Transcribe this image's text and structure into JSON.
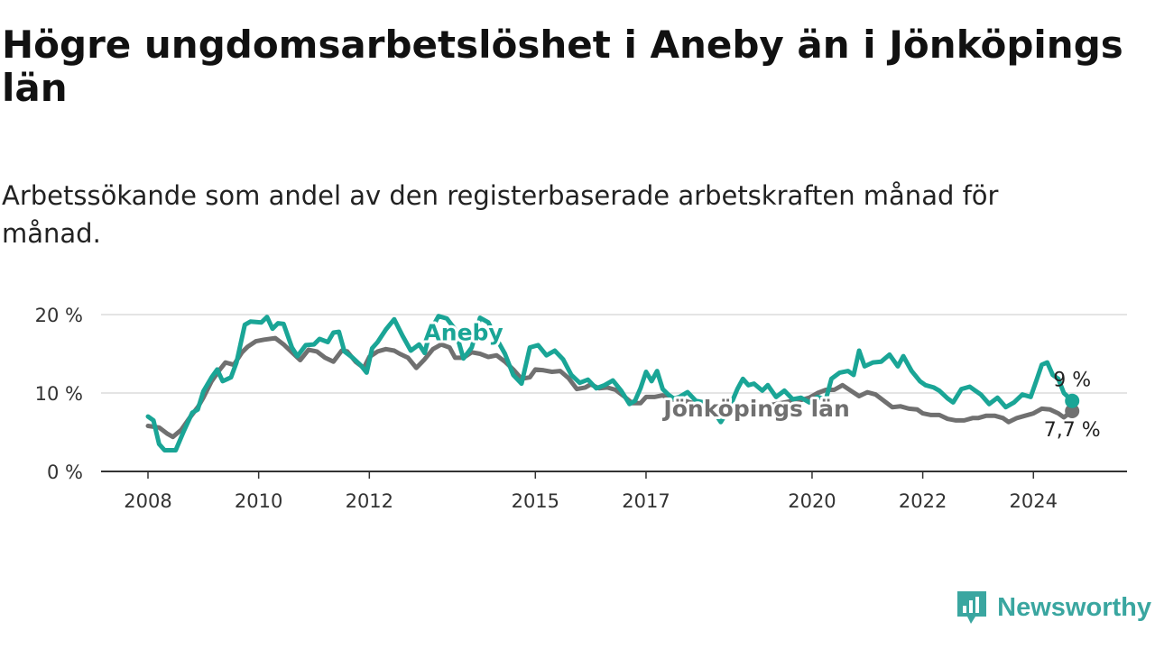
{
  "header": {
    "title": "Högre ungdomsarbetslöshet i Aneby än i Jönköpings län",
    "subtitle": "Arbetssökande som andel av den registerbaserade arbetskraften månad för månad."
  },
  "brand": {
    "name": "Newsworthy",
    "icon": "chart-bubble-icon",
    "color": "#3aa6a0"
  },
  "chart_data": {
    "type": "line",
    "title": "Högre ungdomsarbetslöshet i Aneby än i Jönköpings län",
    "xlabel": "",
    "ylabel": "",
    "xlim": [
      2008.0,
      2025.3
    ],
    "ylim": [
      0,
      20
    ],
    "grid": true,
    "x_ticks": [
      {
        "value": 2008,
        "label": "2008"
      },
      {
        "value": 2010,
        "label": "2010"
      },
      {
        "value": 2012,
        "label": "2012"
      },
      {
        "value": 2015,
        "label": "2015"
      },
      {
        "value": 2017,
        "label": "2017"
      },
      {
        "value": 2020,
        "label": "2020"
      },
      {
        "value": 2022,
        "label": "2022"
      },
      {
        "value": 2024,
        "label": "2024"
      }
    ],
    "y_ticks": [
      {
        "value": 0,
        "label": "0 %"
      },
      {
        "value": 10,
        "label": "10 %"
      },
      {
        "value": 20,
        "label": "20 %"
      }
    ],
    "series": [
      {
        "name": "Jönköpings län",
        "color": "#707070",
        "end_label": "7,7 %",
        "points": [
          [
            2008.0,
            5.8
          ],
          [
            2008.2,
            5.6
          ],
          [
            2008.35,
            4.8
          ],
          [
            2008.45,
            4.4
          ],
          [
            2008.6,
            5.3
          ],
          [
            2008.75,
            6.8
          ],
          [
            2008.9,
            8.2
          ],
          [
            2009.0,
            9.4
          ],
          [
            2009.15,
            11.5
          ],
          [
            2009.3,
            13.0
          ],
          [
            2009.4,
            13.9
          ],
          [
            2009.55,
            13.6
          ],
          [
            2009.7,
            15.2
          ],
          [
            2009.8,
            15.9
          ],
          [
            2009.95,
            16.6
          ],
          [
            2010.1,
            16.8
          ],
          [
            2010.3,
            17.0
          ],
          [
            2010.45,
            16.2
          ],
          [
            2010.6,
            15.2
          ],
          [
            2010.75,
            14.2
          ],
          [
            2010.9,
            15.5
          ],
          [
            2011.05,
            15.3
          ],
          [
            2011.2,
            14.5
          ],
          [
            2011.35,
            14.0
          ],
          [
            2011.5,
            15.4
          ],
          [
            2011.6,
            15.3
          ],
          [
            2011.75,
            14.0
          ],
          [
            2011.9,
            13.2
          ],
          [
            2012.0,
            14.6
          ],
          [
            2012.15,
            15.3
          ],
          [
            2012.3,
            15.6
          ],
          [
            2012.45,
            15.4
          ],
          [
            2012.55,
            15.0
          ],
          [
            2012.7,
            14.5
          ],
          [
            2012.85,
            13.2
          ],
          [
            2013.0,
            14.3
          ],
          [
            2013.15,
            15.6
          ],
          [
            2013.3,
            16.2
          ],
          [
            2013.45,
            15.8
          ],
          [
            2013.55,
            14.5
          ],
          [
            2013.7,
            14.5
          ],
          [
            2013.85,
            15.2
          ],
          [
            2014.0,
            15.0
          ],
          [
            2014.15,
            14.6
          ],
          [
            2014.3,
            14.8
          ],
          [
            2014.45,
            14.0
          ],
          [
            2014.6,
            13.0
          ],
          [
            2014.75,
            11.8
          ],
          [
            2014.9,
            12.0
          ],
          [
            2015.0,
            13.0
          ],
          [
            2015.15,
            12.9
          ],
          [
            2015.3,
            12.7
          ],
          [
            2015.45,
            12.8
          ],
          [
            2015.6,
            11.9
          ],
          [
            2015.75,
            10.5
          ],
          [
            2015.9,
            10.7
          ],
          [
            2016.0,
            11.1
          ],
          [
            2016.15,
            10.6
          ],
          [
            2016.3,
            10.7
          ],
          [
            2016.45,
            10.4
          ],
          [
            2016.6,
            9.6
          ],
          [
            2016.75,
            8.7
          ],
          [
            2016.9,
            8.7
          ],
          [
            2017.0,
            9.5
          ],
          [
            2017.15,
            9.5
          ],
          [
            2017.3,
            9.7
          ],
          [
            2017.45,
            9.2
          ],
          [
            2017.55,
            9.1
          ],
          [
            2017.7,
            9.0
          ],
          [
            2017.85,
            8.7
          ],
          [
            2018.0,
            8.5
          ],
          [
            2018.15,
            8.2
          ],
          [
            2018.3,
            8.0
          ],
          [
            2018.45,
            7.8
          ],
          [
            2018.6,
            7.8
          ],
          [
            2018.75,
            7.9
          ],
          [
            2018.9,
            8.2
          ],
          [
            2019.05,
            8.3
          ],
          [
            2019.2,
            8.4
          ],
          [
            2019.35,
            8.6
          ],
          [
            2019.5,
            8.8
          ],
          [
            2019.65,
            9.0
          ],
          [
            2019.8,
            9.1
          ],
          [
            2019.95,
            9.4
          ],
          [
            2020.1,
            10.0
          ],
          [
            2020.25,
            10.4
          ],
          [
            2020.4,
            10.4
          ],
          [
            2020.55,
            11.0
          ],
          [
            2020.7,
            10.3
          ],
          [
            2020.85,
            9.6
          ],
          [
            2021.0,
            10.1
          ],
          [
            2021.15,
            9.8
          ],
          [
            2021.3,
            9.0
          ],
          [
            2021.45,
            8.2
          ],
          [
            2021.6,
            8.3
          ],
          [
            2021.75,
            8.0
          ],
          [
            2021.9,
            7.9
          ],
          [
            2022.0,
            7.4
          ],
          [
            2022.15,
            7.2
          ],
          [
            2022.3,
            7.2
          ],
          [
            2022.45,
            6.7
          ],
          [
            2022.6,
            6.5
          ],
          [
            2022.75,
            6.5
          ],
          [
            2022.9,
            6.8
          ],
          [
            2023.0,
            6.8
          ],
          [
            2023.15,
            7.1
          ],
          [
            2023.3,
            7.1
          ],
          [
            2023.45,
            6.8
          ],
          [
            2023.55,
            6.3
          ],
          [
            2023.7,
            6.8
          ],
          [
            2023.85,
            7.1
          ],
          [
            2024.0,
            7.4
          ],
          [
            2024.15,
            8.0
          ],
          [
            2024.3,
            7.9
          ],
          [
            2024.45,
            7.4
          ],
          [
            2024.55,
            6.9
          ],
          [
            2024.7,
            7.7
          ]
        ]
      },
      {
        "name": "Aneby",
        "color": "#1aa596",
        "end_label": "9 %",
        "points": [
          [
            2008.0,
            7.0
          ],
          [
            2008.1,
            6.5
          ],
          [
            2008.2,
            3.5
          ],
          [
            2008.3,
            2.7
          ],
          [
            2008.5,
            2.7
          ],
          [
            2008.65,
            5.2
          ],
          [
            2008.8,
            7.5
          ],
          [
            2008.9,
            7.9
          ],
          [
            2009.0,
            10.2
          ],
          [
            2009.15,
            12.0
          ],
          [
            2009.25,
            13.0
          ],
          [
            2009.35,
            11.5
          ],
          [
            2009.5,
            12.0
          ],
          [
            2009.6,
            13.9
          ],
          [
            2009.75,
            18.7
          ],
          [
            2009.85,
            19.1
          ],
          [
            2010.05,
            19.0
          ],
          [
            2010.15,
            19.7
          ],
          [
            2010.25,
            18.2
          ],
          [
            2010.35,
            18.9
          ],
          [
            2010.45,
            18.8
          ],
          [
            2010.6,
            15.8
          ],
          [
            2010.7,
            14.7
          ],
          [
            2010.85,
            16.1
          ],
          [
            2011.0,
            16.2
          ],
          [
            2011.1,
            16.9
          ],
          [
            2011.25,
            16.5
          ],
          [
            2011.35,
            17.7
          ],
          [
            2011.45,
            17.8
          ],
          [
            2011.55,
            15.3
          ],
          [
            2011.7,
            14.5
          ],
          [
            2011.85,
            13.5
          ],
          [
            2011.95,
            12.6
          ],
          [
            2012.05,
            15.7
          ],
          [
            2012.15,
            16.5
          ],
          [
            2012.3,
            18.1
          ],
          [
            2012.45,
            19.4
          ],
          [
            2012.6,
            17.3
          ],
          [
            2012.75,
            15.4
          ],
          [
            2012.9,
            16.2
          ],
          [
            2013.0,
            15.1
          ],
          [
            2013.1,
            17.9
          ],
          [
            2013.25,
            19.8
          ],
          [
            2013.4,
            19.5
          ],
          [
            2013.55,
            18.1
          ],
          [
            2013.7,
            14.4
          ],
          [
            2013.85,
            15.8
          ],
          [
            2014.0,
            19.6
          ],
          [
            2014.15,
            19.0
          ],
          [
            2014.3,
            16.9
          ],
          [
            2014.45,
            15.0
          ],
          [
            2014.6,
            12.3
          ],
          [
            2014.75,
            11.2
          ],
          [
            2014.9,
            15.8
          ],
          [
            2015.05,
            16.1
          ],
          [
            2015.2,
            14.8
          ],
          [
            2015.35,
            15.4
          ],
          [
            2015.5,
            14.3
          ],
          [
            2015.65,
            12.3
          ],
          [
            2015.8,
            11.3
          ],
          [
            2015.95,
            11.7
          ],
          [
            2016.1,
            10.6
          ],
          [
            2016.25,
            11.0
          ],
          [
            2016.4,
            11.6
          ],
          [
            2016.55,
            10.3
          ],
          [
            2016.7,
            8.6
          ],
          [
            2016.8,
            9.0
          ],
          [
            2016.9,
            10.6
          ],
          [
            2017.0,
            12.7
          ],
          [
            2017.1,
            11.5
          ],
          [
            2017.2,
            12.8
          ],
          [
            2017.3,
            10.5
          ],
          [
            2017.4,
            9.8
          ],
          [
            2017.5,
            9.3
          ],
          [
            2017.6,
            9.5
          ],
          [
            2017.75,
            10.1
          ],
          [
            2017.9,
            9.0
          ],
          [
            2018.05,
            8.8
          ],
          [
            2018.2,
            7.9
          ],
          [
            2018.35,
            6.3
          ],
          [
            2018.5,
            8.0
          ],
          [
            2018.65,
            10.5
          ],
          [
            2018.75,
            11.8
          ],
          [
            2018.85,
            11.0
          ],
          [
            2018.95,
            11.2
          ],
          [
            2019.1,
            10.3
          ],
          [
            2019.2,
            11.0
          ],
          [
            2019.35,
            9.5
          ],
          [
            2019.5,
            10.3
          ],
          [
            2019.65,
            9.2
          ],
          [
            2019.8,
            9.4
          ],
          [
            2019.95,
            8.8
          ],
          [
            2020.1,
            9.5
          ],
          [
            2020.25,
            9.2
          ],
          [
            2020.35,
            11.8
          ],
          [
            2020.5,
            12.6
          ],
          [
            2020.65,
            12.8
          ],
          [
            2020.75,
            12.3
          ],
          [
            2020.85,
            15.4
          ],
          [
            2020.95,
            13.4
          ],
          [
            2021.1,
            13.9
          ],
          [
            2021.25,
            14.0
          ],
          [
            2021.4,
            14.9
          ],
          [
            2021.55,
            13.4
          ],
          [
            2021.65,
            14.7
          ],
          [
            2021.8,
            12.8
          ],
          [
            2021.95,
            11.5
          ],
          [
            2022.05,
            11.0
          ],
          [
            2022.2,
            10.7
          ],
          [
            2022.3,
            10.3
          ],
          [
            2022.45,
            9.3
          ],
          [
            2022.55,
            8.8
          ],
          [
            2022.7,
            10.5
          ],
          [
            2022.85,
            10.8
          ],
          [
            2022.95,
            10.3
          ],
          [
            2023.05,
            9.8
          ],
          [
            2023.2,
            8.6
          ],
          [
            2023.35,
            9.4
          ],
          [
            2023.5,
            8.2
          ],
          [
            2023.65,
            8.8
          ],
          [
            2023.8,
            9.8
          ],
          [
            2023.95,
            9.5
          ],
          [
            2024.05,
            11.5
          ],
          [
            2024.15,
            13.6
          ],
          [
            2024.25,
            13.9
          ],
          [
            2024.35,
            12.3
          ],
          [
            2024.45,
            11.8
          ],
          [
            2024.55,
            10.0
          ],
          [
            2024.7,
            9.0
          ]
        ]
      }
    ],
    "annotations": [
      {
        "series": "Aneby",
        "text": "Aneby",
        "x": 2013.7,
        "y": 16.7
      },
      {
        "series": "Jönköpings län",
        "text": "Jönköpings län",
        "x": 2019.0,
        "y": 7.0
      }
    ]
  }
}
